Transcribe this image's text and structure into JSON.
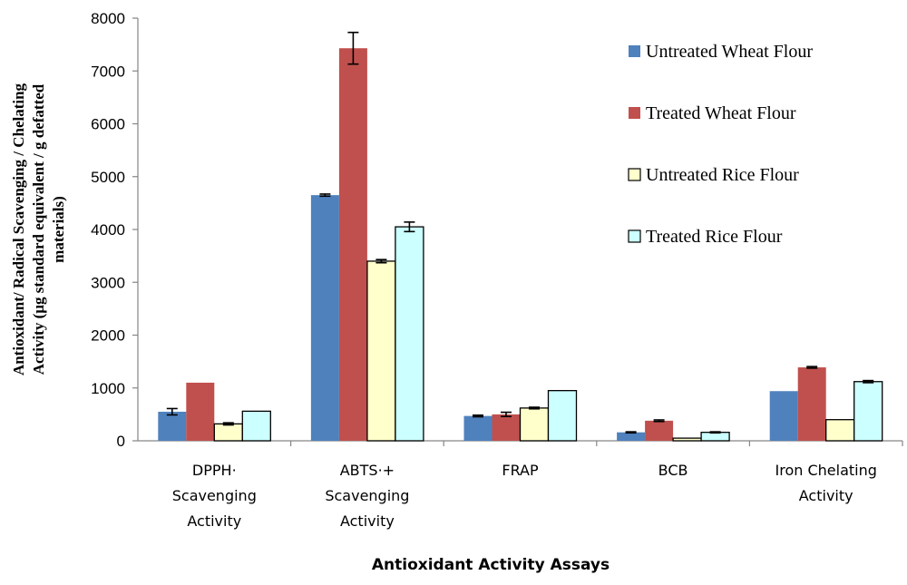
{
  "chart_data": {
    "type": "bar",
    "ylabel_lines": [
      "Antioxidant/ Radical Scavenging / Chelating",
      "Activity (µg standard equivalent / g defatted",
      "materials)"
    ],
    "xlabel": "Antioxidant Activity Assays",
    "ylim": [
      0,
      8000
    ],
    "yticks": [
      0,
      1000,
      2000,
      3000,
      4000,
      5000,
      6000,
      7000,
      8000
    ],
    "categories": [
      [
        "DPPH·",
        "Scavenging",
        "Activity"
      ],
      [
        "ABTS·+",
        "Scavenging",
        "Activity"
      ],
      [
        "FRAP"
      ],
      [
        "BCB"
      ],
      [
        "Iron Chelating",
        "Activity"
      ]
    ],
    "series": [
      {
        "name": "Untreated Wheat Flour",
        "color": "#4F81BD",
        "values": [
          550,
          4650,
          470,
          160,
          940
        ],
        "errors": [
          60,
          20,
          15,
          10,
          0
        ]
      },
      {
        "name": "Treated Wheat Flour",
        "color": "#C0504D",
        "values": [
          1100,
          7430,
          500,
          380,
          1390
        ],
        "errors": [
          0,
          300,
          40,
          15,
          15
        ]
      },
      {
        "name": "Untreated Rice Flour",
        "color": "#FFFFCC",
        "values": [
          320,
          3400,
          620,
          50,
          400
        ],
        "errors": [
          20,
          30,
          15,
          0,
          0
        ]
      },
      {
        "name": "Treated Rice Flour",
        "color": "#CCFFFF",
        "values": [
          560,
          4050,
          950,
          160,
          1120
        ],
        "errors": [
          0,
          90,
          0,
          10,
          20
        ]
      }
    ]
  }
}
